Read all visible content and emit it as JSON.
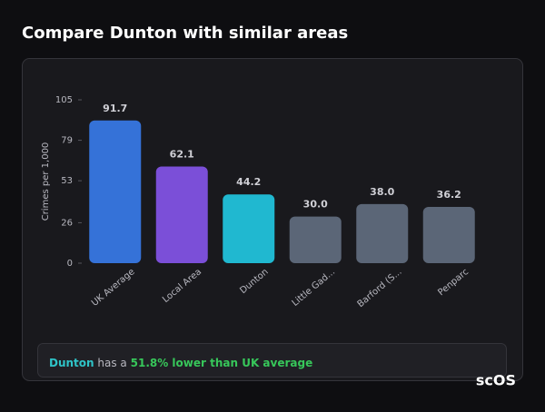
{
  "chart_data": {
    "type": "bar",
    "title": "Compare Dunton with similar areas",
    "y_label": "Crimes per 1,000",
    "categories": [
      "UK Average",
      "Local Area",
      "Dunton",
      "Little Gad...",
      "Barford (S...",
      "Penparc"
    ],
    "values": [
      91.7,
      62.1,
      44.2,
      30.0,
      38.0,
      36.2
    ],
    "value_labels": [
      "91.7",
      "62.1",
      "44.2",
      "30.0",
      "38.0",
      "36.2"
    ],
    "colors": [
      "#3572d8",
      "#7b4fd8",
      "#20b8d0",
      "#5b6677",
      "#5b6677",
      "#5b6677"
    ],
    "ylim": [
      0,
      105
    ],
    "yticks": [
      0,
      26,
      53,
      79,
      105
    ]
  },
  "summary": {
    "area": "Dunton",
    "text": "has a",
    "highlight": "51.8% lower than UK average"
  },
  "logo": "scOS"
}
